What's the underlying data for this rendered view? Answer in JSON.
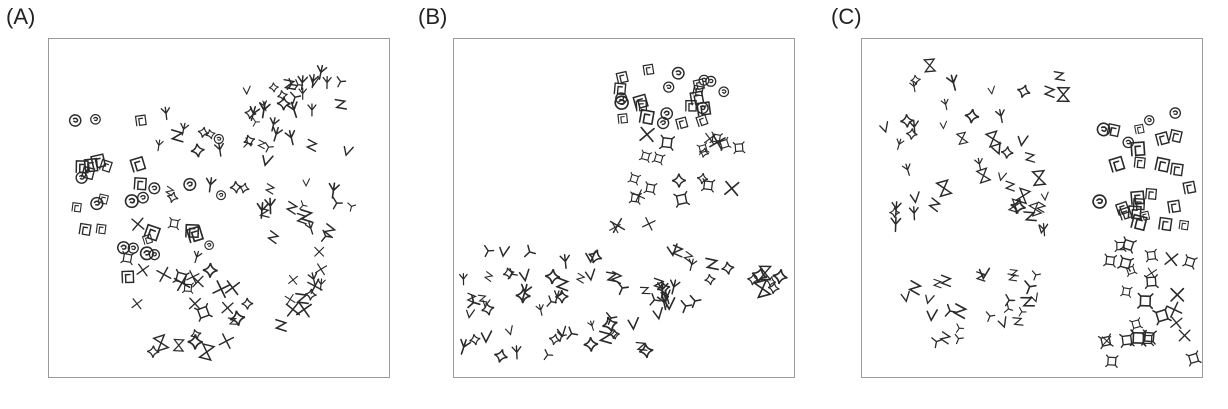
{
  "figure": {
    "panels": [
      {
        "label": "(A)"
      },
      {
        "label": "(B)"
      },
      {
        "label": "(C)"
      }
    ]
  },
  "colors": {
    "glyph_ink": "#2a2a2a",
    "frame": "#9a9a9a"
  }
}
